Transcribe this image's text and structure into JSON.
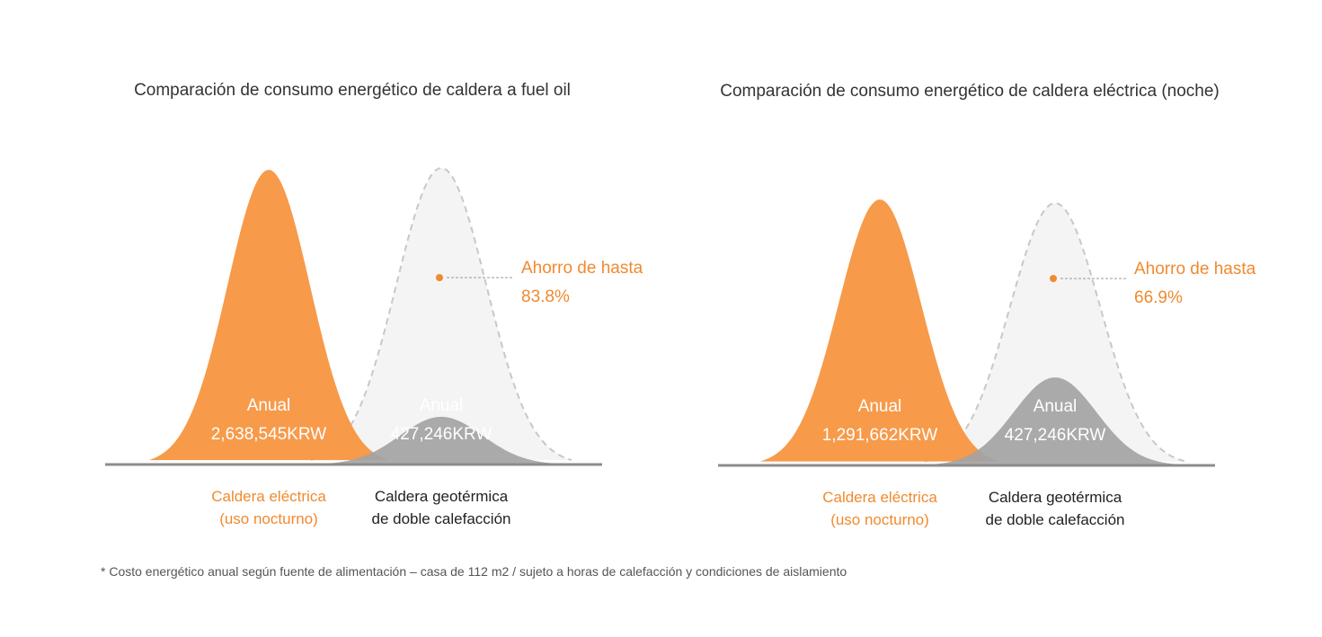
{
  "footnote": "* Costo energético anual según fuente de alimentación – casa de 112 m2 / sujeto a horas de calefacción y condiciones de aislamiento",
  "colors": {
    "orange": "#f79a4a",
    "orange_text": "#f08a2e",
    "gray": "#a3a3a3",
    "ghost_fill": "#f4f4f4",
    "ghost_stroke": "#c8c8c8",
    "axis": "#8c8c8c"
  },
  "chart_data": [
    {
      "type": "area",
      "title": "Comparación de consumo energético de caldera a fuel oil",
      "unit": "KRW",
      "series": [
        {
          "name": "Caldera eléctrica (uso nocturno)",
          "category_lines": [
            "Caldera eléctrica",
            "(uso nocturno)"
          ],
          "value": 2638545,
          "label_lines": [
            "Anual",
            "2,638,545KRW"
          ]
        },
        {
          "name": "Caldera geotérmica de doble calefacción",
          "category_lines": [
            "Caldera geotérmica",
            "de doble calefacción"
          ],
          "value": 427246,
          "label_lines": [
            "Anual",
            "427,246KRW"
          ]
        }
      ],
      "annotation": {
        "text_lines": [
          "Ahorro de hasta",
          "83.8%"
        ],
        "saving_percent": 83.8
      }
    },
    {
      "type": "area",
      "title": "Comparación de consumo energético de caldera eléctrica (noche)",
      "unit": "KRW",
      "series": [
        {
          "name": "Caldera eléctrica (uso nocturno)",
          "category_lines": [
            "Caldera eléctrica",
            "(uso nocturno)"
          ],
          "value": 1291662,
          "label_lines": [
            "Anual",
            "1,291,662KRW"
          ]
        },
        {
          "name": "Caldera geotérmica de doble calefacción",
          "category_lines": [
            "Caldera geotérmica",
            "de doble calefacción"
          ],
          "value": 427246,
          "label_lines": [
            "Anual",
            "427,246KRW"
          ]
        }
      ],
      "annotation": {
        "text_lines": [
          "Ahorro de hasta",
          "66.9%"
        ],
        "saving_percent": 66.9
      }
    }
  ]
}
